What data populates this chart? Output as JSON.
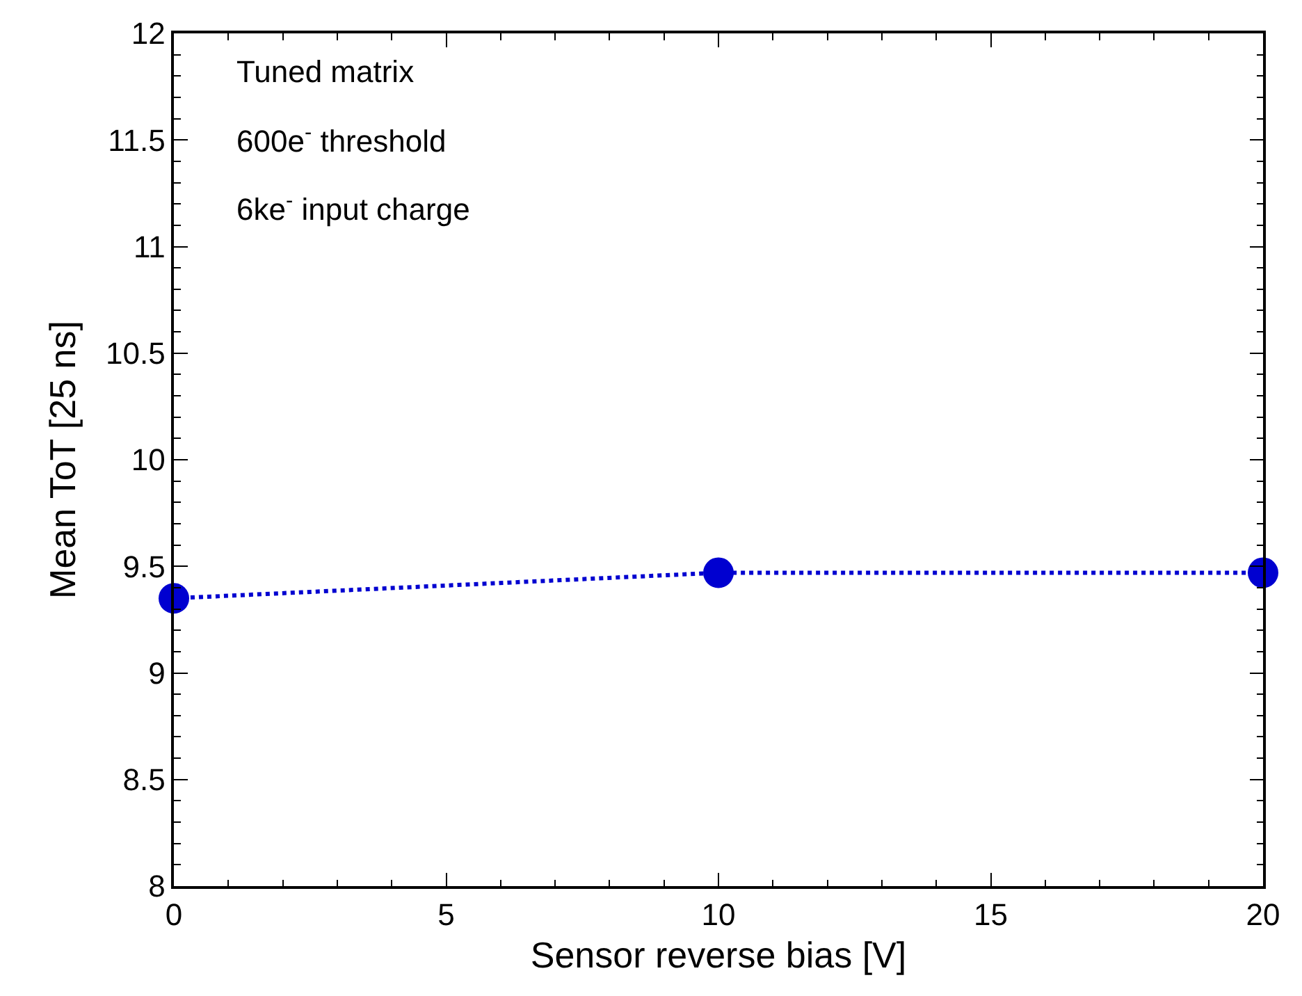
{
  "chart_data": {
    "type": "line",
    "xlabel": "Sensor reverse bias [V]",
    "ylabel": "Mean ToT [25 ns]",
    "annotations": [
      "Tuned matrix",
      "600e$^{-}$ threshold",
      "6ke$^{-}$ input charge"
    ],
    "x": [
      0,
      10,
      20
    ],
    "series": [
      {
        "color": "#0000d0",
        "values": [
          9.35,
          9.47,
          9.47
        ]
      }
    ],
    "xlim": [
      0,
      20
    ],
    "xticks": [
      0,
      5,
      10,
      15,
      20
    ],
    "ylim": [
      8,
      12
    ],
    "yticks": [
      8,
      8.5,
      9,
      9.5,
      10,
      10.5,
      11,
      11.5,
      12
    ],
    "grid": false,
    "marker": "circle",
    "line_style": "dotted"
  }
}
